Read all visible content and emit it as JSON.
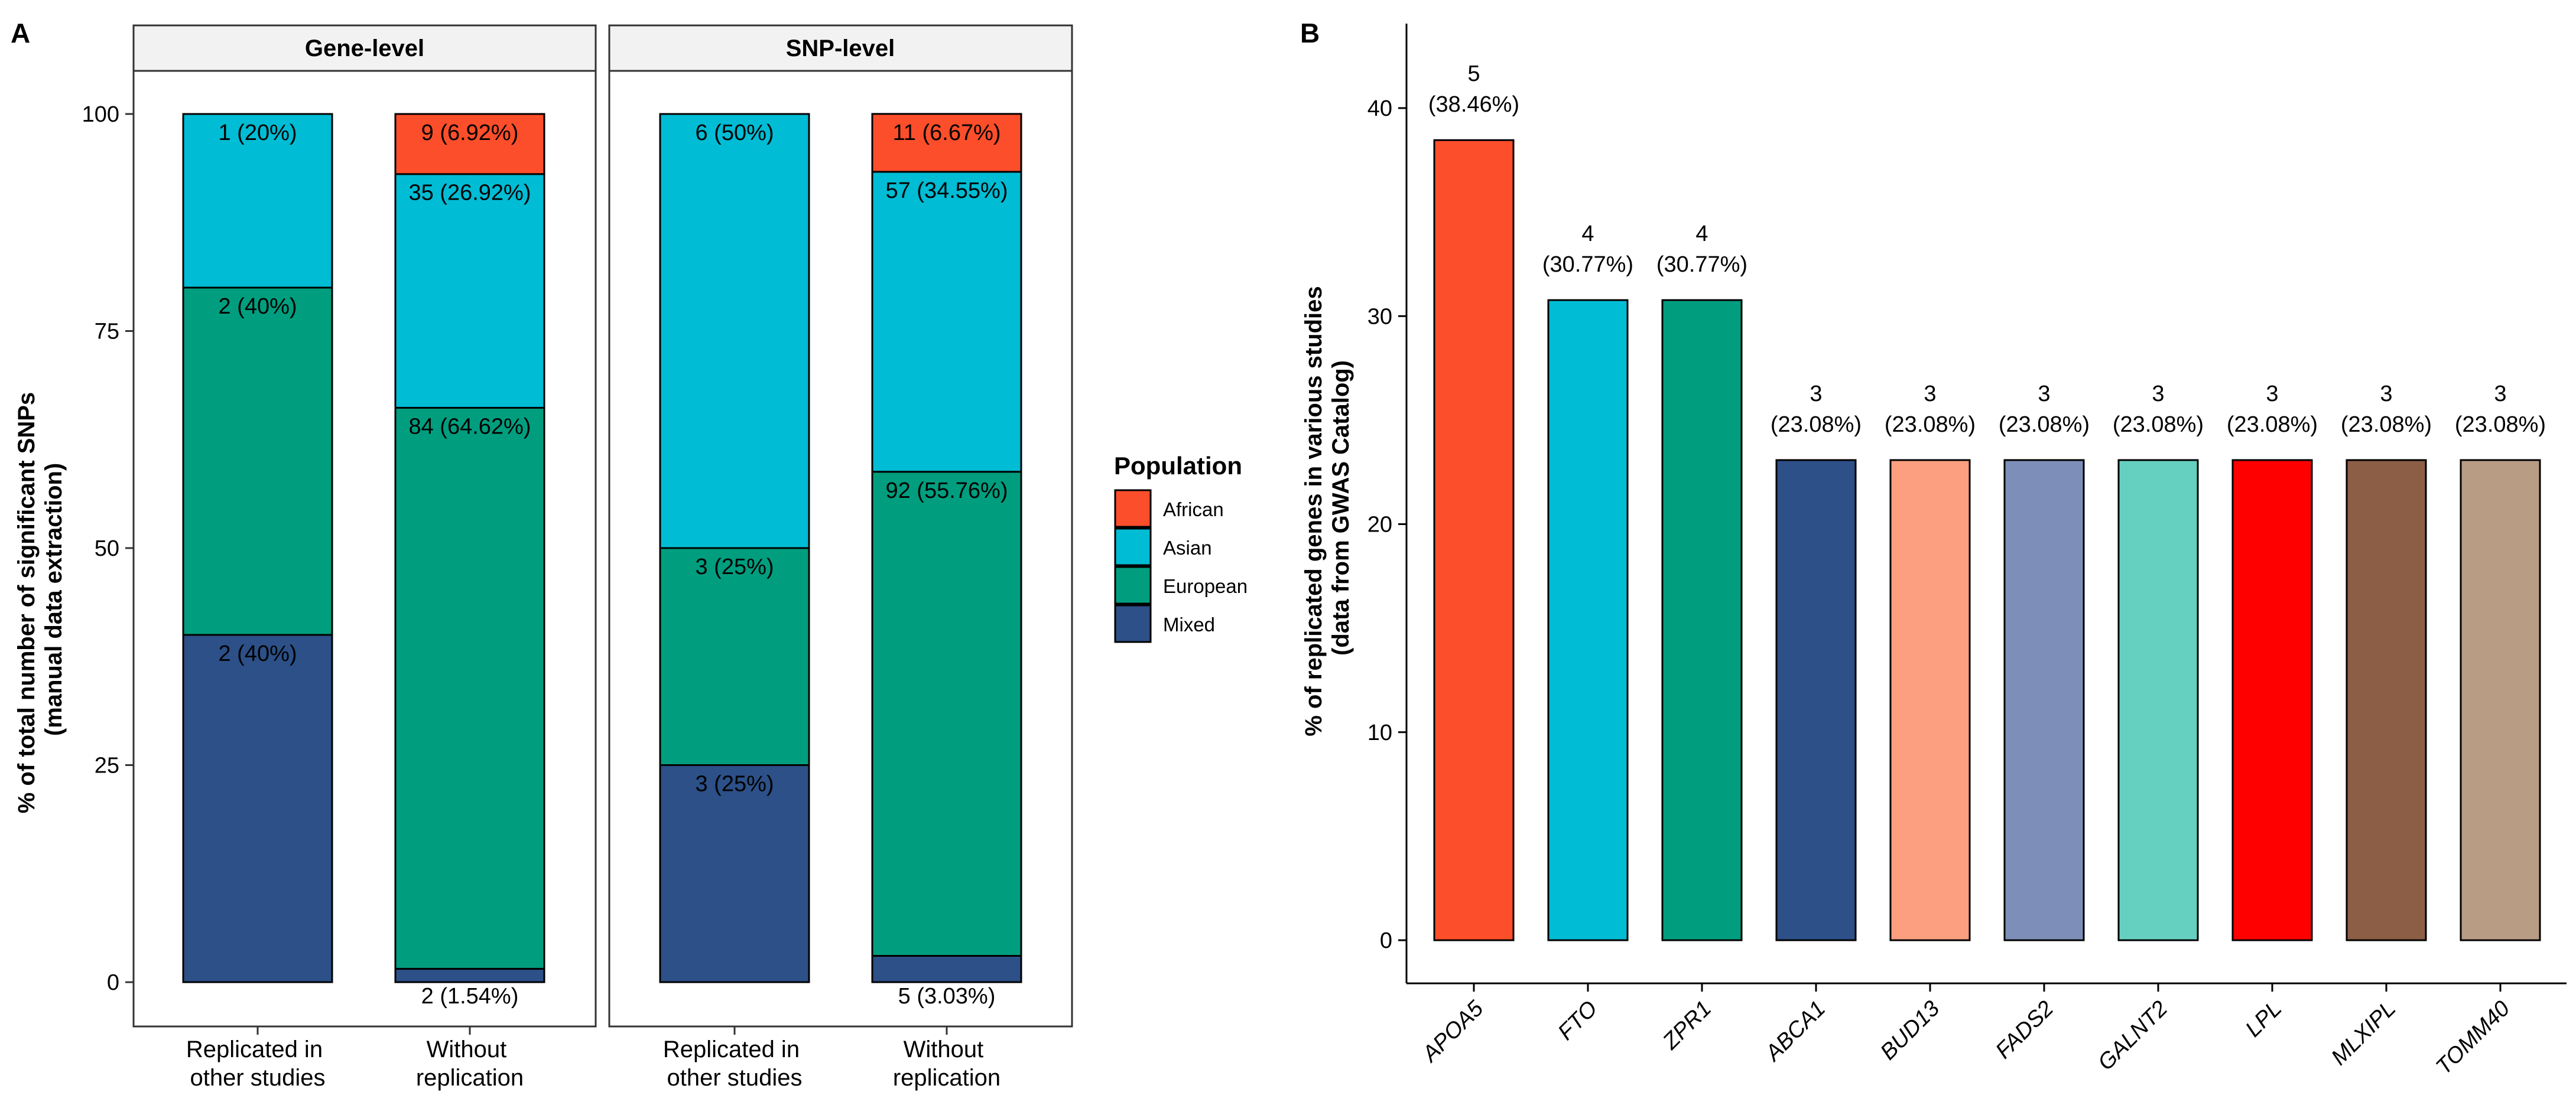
{
  "panels": {
    "a": {
      "letter": "A"
    },
    "b": {
      "letter": "B"
    }
  },
  "chart_data": [
    {
      "type": "bar",
      "stacked": true,
      "panel": "A",
      "ylabel_line1": "% of total number of significant SNPs",
      "ylabel_line2": "(manual data extraction)",
      "ylim": [
        0,
        105
      ],
      "yticks": [
        0,
        25,
        50,
        75,
        100
      ],
      "facets": [
        {
          "title": "Gene-level",
          "categories": [
            {
              "label_line1": "Replicated in",
              "label_line2": "other studies"
            },
            {
              "label_line1": "Without",
              "label_line2": "replication"
            }
          ],
          "series": [
            {
              "name": "Mixed",
              "values": [
                40,
                1.54
              ],
              "labels": [
                "2 (40%)",
                "2 (1.54%)"
              ]
            },
            {
              "name": "European",
              "values": [
                40,
                64.62
              ],
              "labels": [
                "2 (40%)",
                "84 (64.62%)"
              ]
            },
            {
              "name": "Asian",
              "values": [
                20,
                26.92
              ],
              "labels": [
                "1 (20%)",
                "35 (26.92%)"
              ]
            },
            {
              "name": "African",
              "values": [
                0,
                6.92
              ],
              "labels": [
                "",
                "9 (6.92%)"
              ]
            }
          ]
        },
        {
          "title": "SNP-level",
          "categories": [
            {
              "label_line1": "Replicated in",
              "label_line2": "other studies"
            },
            {
              "label_line1": "Without",
              "label_line2": "replication"
            }
          ],
          "series": [
            {
              "name": "Mixed",
              "values": [
                25,
                3.03
              ],
              "labels": [
                "3 (25%)",
                "5 (3.03%)"
              ]
            },
            {
              "name": "European",
              "values": [
                25,
                55.76
              ],
              "labels": [
                "3 (25%)",
                "92 (55.76%)"
              ]
            },
            {
              "name": "Asian",
              "values": [
                50,
                34.55
              ],
              "labels": [
                "6 (50%)",
                "57 (34.55%)"
              ]
            },
            {
              "name": "African",
              "values": [
                0,
                6.67
              ],
              "labels": [
                "",
                "11 (6.67%)"
              ]
            }
          ]
        }
      ],
      "legend": {
        "title": "Population",
        "position": "right",
        "items": [
          {
            "name": "African",
            "color": "#FC4E2A"
          },
          {
            "name": "Asian",
            "color": "#00BCD4"
          },
          {
            "name": "European",
            "color": "#009E7E"
          },
          {
            "name": "Mixed",
            "color": "#2C5087"
          }
        ]
      }
    },
    {
      "type": "bar",
      "panel": "B",
      "ylabel_line1": "% of replicated genes in various studies",
      "ylabel_line2": "(data from GWAS Catalog)",
      "ylim": [
        0,
        44
      ],
      "yticks": [
        0,
        10,
        20,
        30,
        40
      ],
      "categories": [
        "APOA5",
        "FTO",
        "ZPR1",
        "ABCA1",
        "BUD13",
        "FADS2",
        "GALNT2",
        "LPL",
        "MLXIPL",
        "TOMM40"
      ],
      "values": [
        38.46,
        30.77,
        30.77,
        23.08,
        23.08,
        23.08,
        23.08,
        23.08,
        23.08,
        23.08
      ],
      "counts": [
        "5",
        "4",
        "4",
        "3",
        "3",
        "3",
        "3",
        "3",
        "3",
        "3"
      ],
      "percent_labels": [
        "(38.46%)",
        "(30.77%)",
        "(30.77%)",
        "(23.08%)",
        "(23.08%)",
        "(23.08%)",
        "(23.08%)",
        "(23.08%)",
        "(23.08%)",
        "(23.08%)"
      ],
      "colors": [
        "#FC4E2A",
        "#00BCD4",
        "#009E7E",
        "#2C5087",
        "#FC9F80",
        "#7D8FB8",
        "#66D0C0",
        "#FF0000",
        "#8C5E46",
        "#B89C84"
      ]
    }
  ]
}
